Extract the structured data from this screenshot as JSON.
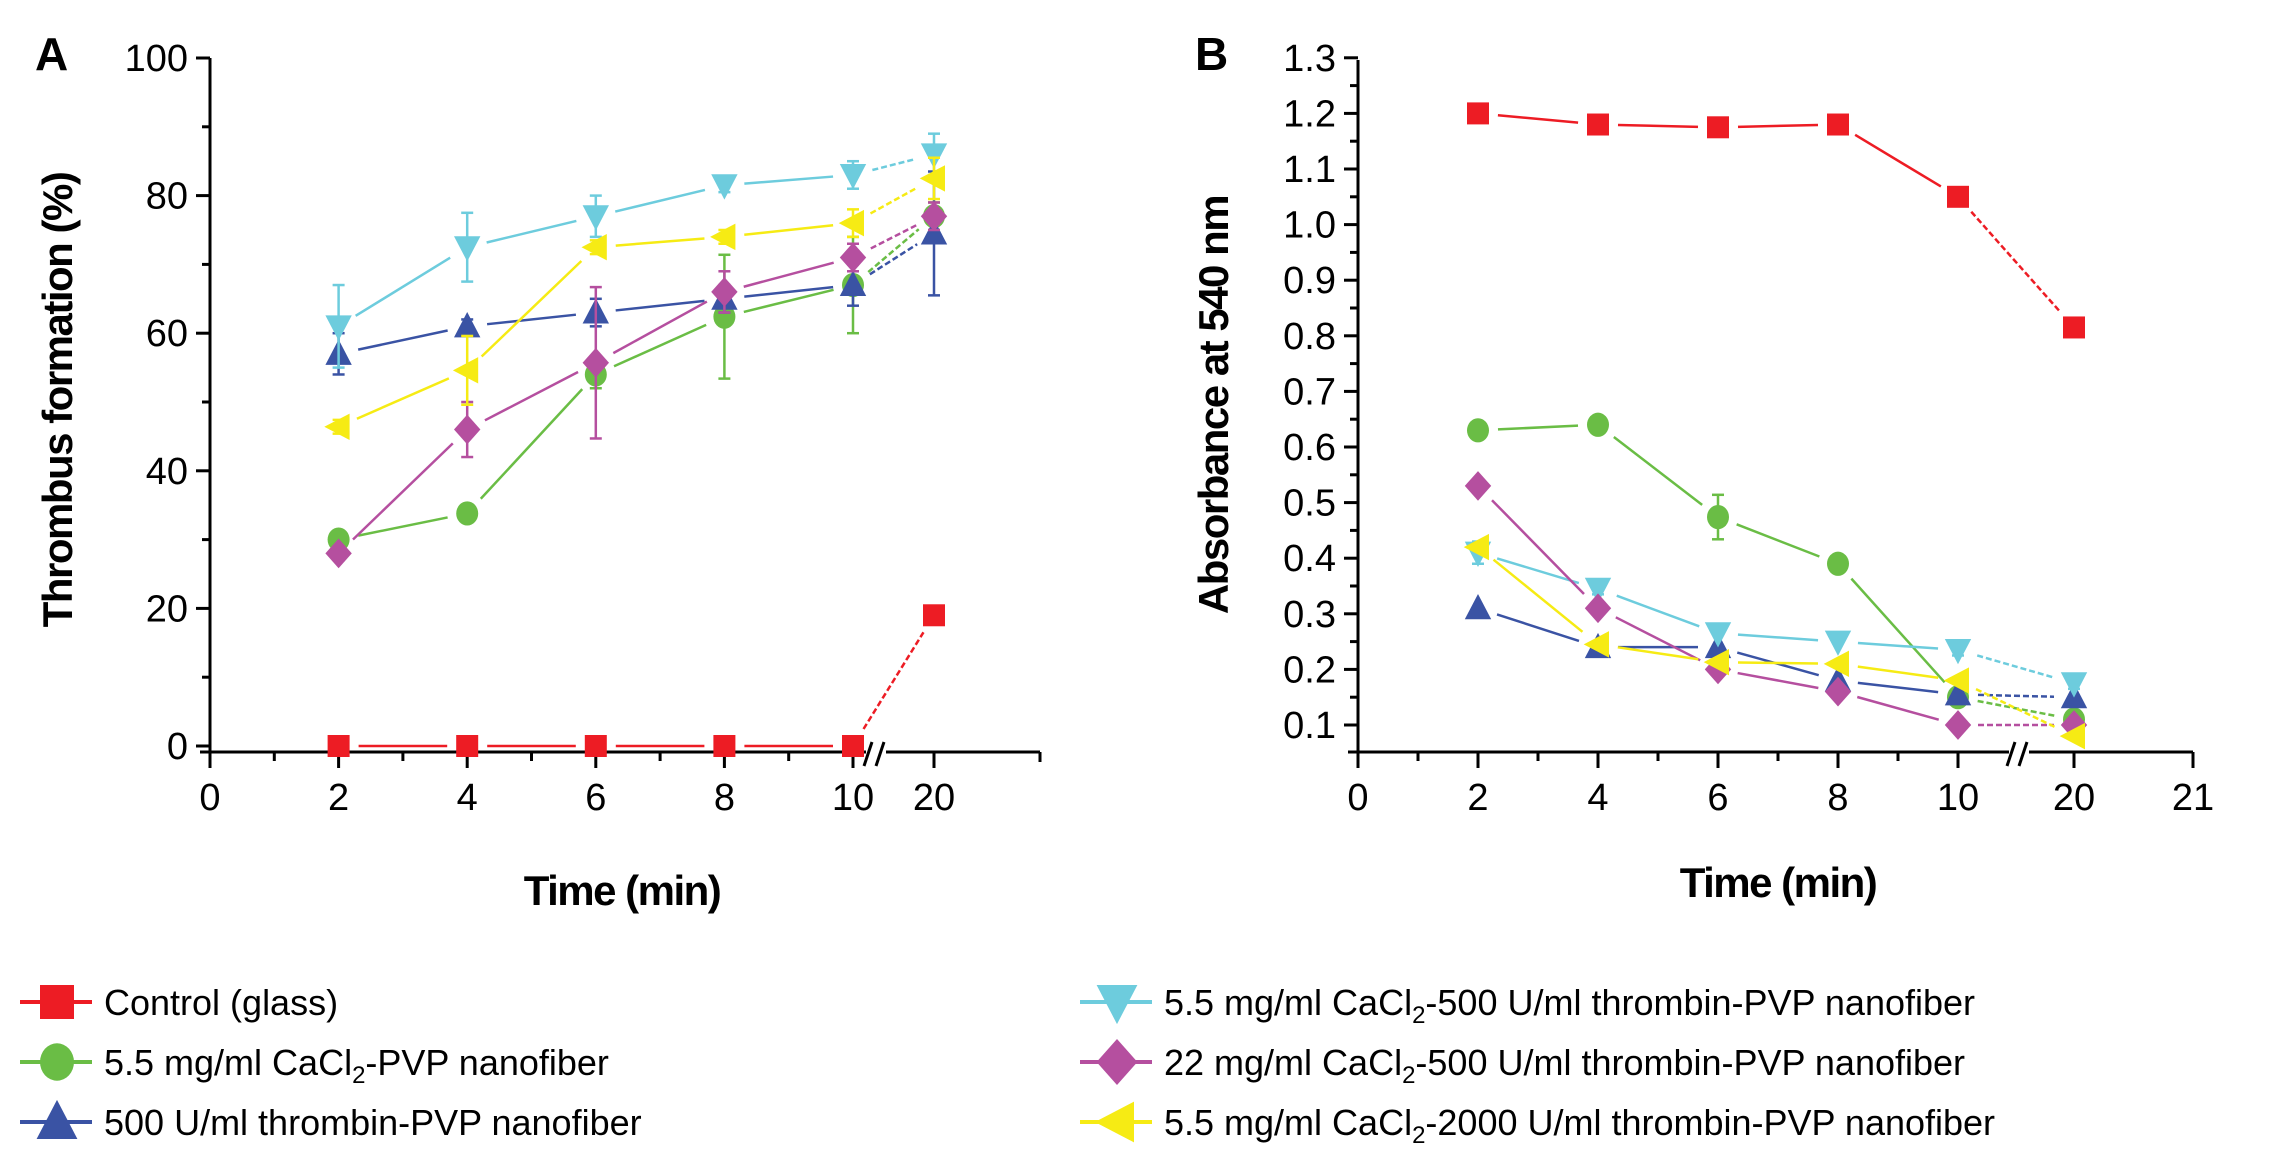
{
  "figure": {
    "panel_a_label": "A",
    "panel_b_label": "B"
  },
  "colors": {
    "control": "#ED1C24",
    "cacl2_pvp": "#6ABD45",
    "thrombin_pvp": "#3A53A4",
    "cacl2_500_thrombin": "#6DCCDD",
    "cacl2_22_500_thrombin": "#B54F9F",
    "cacl2_2000_thrombin": "#F6EB14"
  },
  "chart_data": [
    {
      "id": "A",
      "type": "line",
      "title": "",
      "xlabel": "Time (min)",
      "ylabel": "Thrombus formation (%)",
      "x": [
        2,
        4,
        6,
        8,
        10,
        20
      ],
      "x_ticks": [
        "0",
        "2",
        "4",
        "6",
        "8",
        "10",
        "20"
      ],
      "x_axis_break": "between 10 and 20",
      "y_ticks": [
        "0",
        "20",
        "40",
        "60",
        "80",
        "100"
      ],
      "ylim": [
        0,
        100
      ],
      "grid": false,
      "series": [
        {
          "name": "Control (glass)",
          "marker": "square",
          "color_key": "control",
          "values": [
            0,
            0,
            0,
            0,
            0,
            19
          ],
          "errors": [
            0,
            0,
            0,
            0,
            0,
            0
          ]
        },
        {
          "name": "5.5 mg/ml CaCl2-PVP nanofiber",
          "marker": "circle",
          "color_key": "cacl2_pvp",
          "values": [
            30,
            33.8,
            54,
            62.4,
            67,
            77
          ],
          "errors": [
            1,
            1,
            2,
            9,
            7,
            2
          ]
        },
        {
          "name": "500 U/ml thrombin-PVP nanofiber",
          "marker": "triangle-up",
          "color_key": "thrombin_pvp",
          "values": [
            57,
            61,
            63,
            65,
            67,
            74.5
          ],
          "errors": [
            3,
            1,
            2,
            2,
            3,
            9
          ]
        },
        {
          "name": "5.5 mg/ml CaCl2-500 U/ml thrombin-PVP nanofiber",
          "marker": "triangle-down",
          "color_key": "cacl2_500_thrombin",
          "values": [
            61,
            72.5,
            77,
            81.5,
            83,
            86
          ],
          "errors": [
            6,
            5,
            3,
            1,
            2,
            3
          ]
        },
        {
          "name": "22 mg/ml CaCl2-500 U/ml thrombin-PVP nanofiber",
          "marker": "diamond",
          "color_key": "cacl2_22_500_thrombin",
          "values": [
            28,
            46,
            55.7,
            66,
            71,
            77
          ],
          "errors": [
            1,
            4,
            11,
            3,
            2,
            2
          ]
        },
        {
          "name": "5.5 mg/ml CaCl2-2000 U/ml thrombin-PVP nanofiber",
          "marker": "triangle-left",
          "color_key": "cacl2_2000_thrombin",
          "values": [
            46.4,
            54.6,
            72.5,
            74,
            76,
            82.5
          ],
          "errors": [
            1,
            5,
            1,
            1,
            2,
            3
          ]
        }
      ]
    },
    {
      "id": "B",
      "type": "line",
      "title": "",
      "xlabel": "Time (min)",
      "ylabel": "Absorbance at 540 nm",
      "x": [
        2,
        4,
        6,
        8,
        10,
        20
      ],
      "x_ticks": [
        "0",
        "2",
        "4",
        "6",
        "8",
        "10",
        "20",
        "21"
      ],
      "x_axis_break": "between 10 and 20",
      "y_ticks": [
        "0.1",
        "0.2",
        "0.3",
        "0.4",
        "0.5",
        "0.6",
        "0.7",
        "0.8",
        "0.9",
        "1.0",
        "1.1",
        "1.2",
        "1.3"
      ],
      "ylim": [
        0.05,
        1.3
      ],
      "grid": false,
      "series": [
        {
          "name": "Control (glass)",
          "marker": "square",
          "color_key": "control",
          "values": [
            1.2,
            1.18,
            1.175,
            1.18,
            1.05,
            0.815
          ],
          "errors": [
            0,
            0,
            0,
            0,
            0,
            0
          ]
        },
        {
          "name": "5.5 mg/ml CaCl2-PVP nanofiber",
          "marker": "circle",
          "color_key": "cacl2_pvp",
          "values": [
            0.63,
            0.64,
            0.474,
            0.39,
            0.15,
            0.11
          ],
          "errors": [
            0,
            0,
            0.04,
            0,
            0,
            0
          ]
        },
        {
          "name": "500 U/ml thrombin-PVP nanofiber",
          "marker": "triangle-up",
          "color_key": "thrombin_pvp",
          "values": [
            0.31,
            0.24,
            0.24,
            0.18,
            0.155,
            0.15
          ],
          "errors": [
            0,
            0,
            0,
            0,
            0,
            0
          ]
        },
        {
          "name": "5.5 mg/ml CaCl2-500 U/ml thrombin-PVP nanofiber",
          "marker": "triangle-down",
          "color_key": "cacl2_500_thrombin",
          "values": [
            0.41,
            0.345,
            0.265,
            0.25,
            0.235,
            0.175
          ],
          "errors": [
            0.02,
            0.01,
            0,
            0,
            0.01,
            0.01
          ]
        },
        {
          "name": "22 mg/ml CaCl2-500 U/ml thrombin-PVP nanofiber",
          "marker": "diamond",
          "color_key": "cacl2_22_500_thrombin",
          "values": [
            0.53,
            0.31,
            0.2,
            0.16,
            0.1,
            0.1
          ],
          "errors": [
            0,
            0,
            0,
            0,
            0,
            0
          ]
        },
        {
          "name": "5.5 mg/ml CaCl2-2000 U/ml thrombin-PVP nanofiber",
          "marker": "triangle-left",
          "color_key": "cacl2_2000_thrombin",
          "values": [
            0.42,
            0.245,
            0.213,
            0.21,
            0.18,
            0.08
          ],
          "errors": [
            0,
            0,
            0,
            0,
            0,
            0
          ]
        }
      ]
    }
  ],
  "legend": {
    "placement": "bottom",
    "items": [
      {
        "prefix": "Control (glass)",
        "sub": "",
        "suffix": "",
        "marker": "square",
        "color_key": "control"
      },
      {
        "prefix": "5.5 mg/ml  CaCl",
        "sub": "2",
        "suffix": "-PVP nanofiber",
        "marker": "circle",
        "color_key": "cacl2_pvp"
      },
      {
        "prefix": "500 U/ml thrombin-PVP nanofiber",
        "sub": "",
        "suffix": "",
        "marker": "triangle-up",
        "color_key": "thrombin_pvp"
      },
      {
        "prefix": "5.5 mg/ml  CaCl",
        "sub": "2",
        "suffix": "-500 U/ml thrombin-PVP nanofiber",
        "marker": "triangle-down",
        "color_key": "cacl2_500_thrombin"
      },
      {
        "prefix": "22 mg/ml  CaCl",
        "sub": "2",
        "suffix": "-500 U/ml thrombin-PVP nanofiber",
        "marker": "diamond",
        "color_key": "cacl2_22_500_thrombin"
      },
      {
        "prefix": "5.5 mg/ml  CaCl",
        "sub": "2",
        "suffix": "-2000 U/ml thrombin-PVP nanofiber",
        "marker": "triangle-left",
        "color_key": "cacl2_2000_thrombin"
      }
    ]
  }
}
